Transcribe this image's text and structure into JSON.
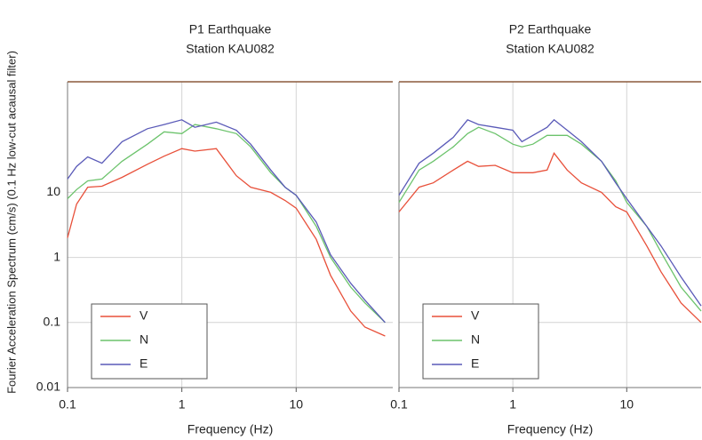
{
  "chart_data": [
    {
      "type": "line",
      "title": "P1 Earthquake",
      "subtitle": "Station KAU082",
      "xlabel": "Frequency (Hz)",
      "ylabel": "Fourier Acceleration Spectrum (cm/s) (0.1 Hz low-cut acausal filter)",
      "xscale": "log",
      "yscale": "log",
      "grid": true,
      "legend": "lower left",
      "xlim": [
        0.1,
        70
      ],
      "ylim": [
        0.01,
        500
      ],
      "xticks": [
        0.1,
        1,
        10
      ],
      "yticks": [
        0.01,
        0.1,
        1,
        10
      ],
      "x": [
        0.1,
        0.12,
        0.15,
        0.2,
        0.3,
        0.5,
        0.7,
        1,
        1.3,
        2,
        3,
        4,
        6,
        8,
        10,
        15,
        20,
        30,
        40,
        60
      ],
      "series": [
        {
          "name": "V",
          "color": "#e8503a",
          "values": [
            2,
            6.6,
            12,
            12.4,
            17,
            27,
            36,
            47,
            43,
            47,
            18,
            12,
            10,
            7.5,
            5.7,
            1.9,
            0.53,
            0.15,
            0.085,
            0.062
          ]
        },
        {
          "name": "N",
          "color": "#6cc36c",
          "values": [
            8,
            11,
            15,
            16,
            30,
            55,
            85,
            80,
            110,
            95,
            80,
            50,
            20,
            12,
            9,
            3,
            1.0,
            0.35,
            0.2,
            0.1
          ]
        },
        {
          "name": "E",
          "color": "#5a5ab8",
          "values": [
            16,
            25,
            35,
            28,
            60,
            95,
            110,
            130,
            100,
            120,
            90,
            55,
            22,
            12,
            9,
            3.5,
            1.1,
            0.4,
            0.22,
            0.1
          ]
        }
      ]
    },
    {
      "type": "line",
      "title": "P2 Earthquake",
      "subtitle": "Station KAU082",
      "xlabel": "Frequency (Hz)",
      "xscale": "log",
      "yscale": "log",
      "grid": true,
      "legend": "lower left",
      "sharey": true,
      "xlim": [
        0.1,
        45
      ],
      "ylim": [
        0.01,
        500
      ],
      "xticks": [
        0.1,
        1,
        10
      ],
      "x": [
        0.1,
        0.15,
        0.2,
        0.3,
        0.4,
        0.5,
        0.7,
        1,
        1.2,
        1.5,
        2,
        2.3,
        3,
        4,
        6,
        8,
        10,
        15,
        20,
        30,
        45
      ],
      "series": [
        {
          "name": "V",
          "color": "#e8503a",
          "values": [
            5,
            12,
            14,
            22,
            30,
            25,
            26,
            20,
            20,
            20,
            22,
            40,
            22,
            14,
            10,
            6,
            5,
            1.5,
            0.6,
            0.2,
            0.1
          ]
        },
        {
          "name": "N",
          "color": "#6cc36c",
          "values": [
            7,
            22,
            30,
            50,
            80,
            100,
            80,
            55,
            50,
            55,
            75,
            75,
            75,
            55,
            30,
            15,
            7,
            3,
            1.2,
            0.35,
            0.15
          ]
        },
        {
          "name": "E",
          "color": "#5a5ab8",
          "values": [
            9,
            28,
            40,
            70,
            130,
            110,
            100,
            90,
            60,
            75,
            100,
            130,
            90,
            60,
            30,
            14,
            8,
            3,
            1.5,
            0.5,
            0.18
          ]
        }
      ]
    }
  ]
}
